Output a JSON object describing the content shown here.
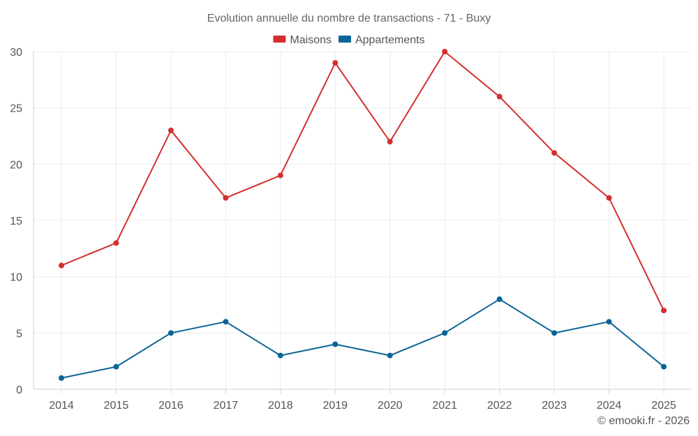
{
  "chart_data": {
    "type": "line",
    "title": "Evolution annuelle du nombre de transactions - 71 - Buxy",
    "categories": [
      "2014",
      "2015",
      "2016",
      "2017",
      "2018",
      "2019",
      "2020",
      "2021",
      "2022",
      "2023",
      "2024",
      "2025"
    ],
    "series": [
      {
        "name": "Maisons",
        "color": "#d32f2f",
        "values": [
          11,
          13,
          23,
          17,
          19,
          29,
          22,
          30,
          26,
          21,
          17,
          7
        ]
      },
      {
        "name": "Appartements",
        "color": "#0a6496",
        "values": [
          1,
          2,
          5,
          6,
          3,
          4,
          3,
          5,
          8,
          5,
          6,
          2
        ]
      }
    ],
    "ylim": [
      0,
      30
    ],
    "yticks": [
      0,
      5,
      10,
      15,
      20,
      25,
      30
    ],
    "grid": true,
    "legend": "top-center",
    "xlabel": "",
    "ylabel": ""
  },
  "credit": "© emooki.fr - 2026"
}
